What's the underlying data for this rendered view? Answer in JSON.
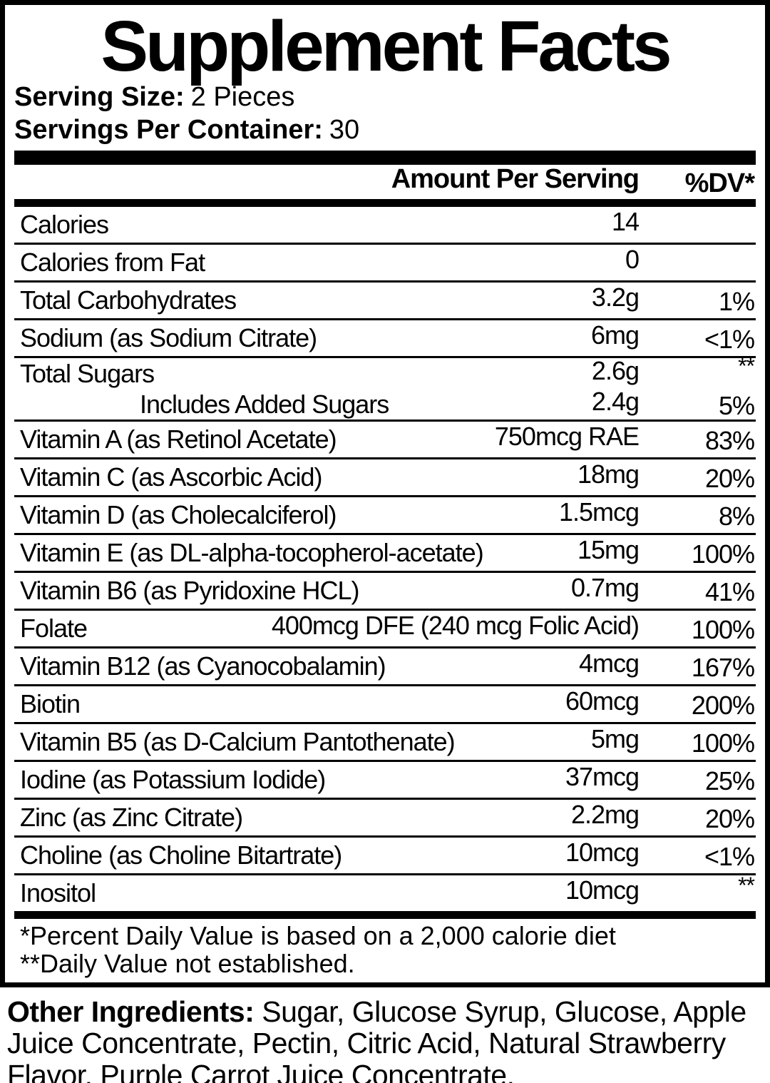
{
  "colors": {
    "text": "#000000",
    "background": "#ffffff"
  },
  "label": {
    "title": "Supplement Facts",
    "serving_size_label": "Serving Size:",
    "serving_size_value": "2 Pieces",
    "servings_per_container_label": "Servings Per Container:",
    "servings_per_container_value": "30",
    "header": {
      "amount": "Amount Per Serving",
      "dv": "%DV*"
    },
    "rows": [
      {
        "name": "Calories",
        "amount": "14",
        "dv": ""
      },
      {
        "name": "Calories from Fat",
        "amount": "0",
        "dv": ""
      },
      {
        "name": "Total Carbohydrates",
        "amount": "3.2g",
        "dv": "1%"
      },
      {
        "name": "Sodium (as Sodium Citrate)",
        "amount": "6mg",
        "dv": "<1%"
      },
      {
        "name": "Total Sugars",
        "amount": "2.6g",
        "dv": "**",
        "dv_super": true,
        "no_divider": true,
        "compact": true
      },
      {
        "name": "Includes Added Sugars",
        "amount": "2.4g",
        "dv": "5%",
        "indent": true,
        "compact": true
      },
      {
        "name": "Vitamin A (as Retinol Acetate)",
        "amount": "750mcg RAE",
        "dv": "83%"
      },
      {
        "name": "Vitamin C (as Ascorbic Acid)",
        "amount": "18mg",
        "dv": "20%"
      },
      {
        "name": "Vitamin D (as Cholecalciferol)",
        "amount": "1.5mcg",
        "dv": "8%"
      },
      {
        "name": "Vitamin E (as DL-alpha-tocopherol-acetate)",
        "amount": "15mg",
        "dv": "100%"
      },
      {
        "name": "Vitamin B6 (as Pyridoxine HCL)",
        "amount": "0.7mg",
        "dv": "41%"
      },
      {
        "name": "Folate",
        "amount": "400mcg DFE (240 mcg Folic Acid)",
        "dv": "100%"
      },
      {
        "name": "Vitamin B12 (as Cyanocobalamin)",
        "amount": "4mcg",
        "dv": "167%"
      },
      {
        "name": "Biotin",
        "amount": "60mcg",
        "dv": "200%"
      },
      {
        "name": "Vitamin B5 (as D-Calcium Pantothenate)",
        "amount": "5mg",
        "dv": "100%"
      },
      {
        "name": "Iodine (as Potassium Iodide)",
        "amount": "37mcg",
        "dv": "25%"
      },
      {
        "name": "Zinc (as Zinc Citrate)",
        "amount": "2.2mg",
        "dv": "20%"
      },
      {
        "name": "Choline (as Choline Bitartrate)",
        "amount": "10mcg",
        "dv": "<1%"
      },
      {
        "name": "Inositol",
        "amount": "10mcg",
        "dv": "**",
        "dv_super": true
      }
    ],
    "footnotes": [
      "*Percent Daily Value is based on a 2,000 calorie diet",
      "**Daily Value not established."
    ],
    "other_ingredients_label": "Other Ingredients:",
    "other_ingredients_text": "Sugar, Glucose Syrup, Glucose, Apple Juice Concentrate, Pectin, Citric Acid, Natural Strawberry Flavor, Purple Carrot Juice Concentrate."
  }
}
